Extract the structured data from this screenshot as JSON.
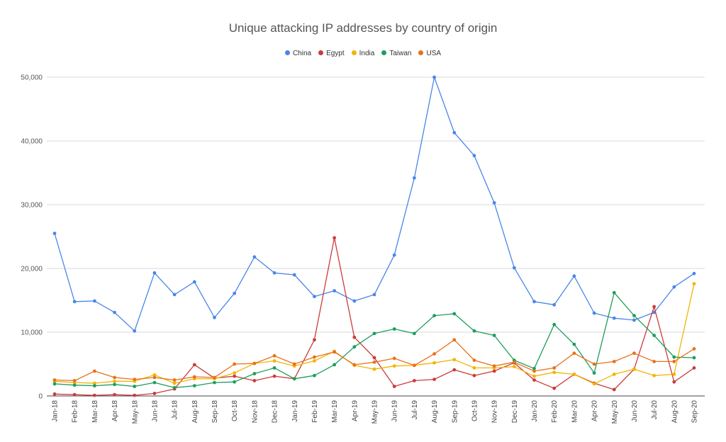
{
  "chart_data": {
    "type": "line",
    "title": "Unique attacking IP addresses by country of origin",
    "xlabel": "",
    "ylabel": "",
    "ylim": [
      0,
      50000
    ],
    "yticks": [
      "0",
      "10,000",
      "20,000",
      "30,000",
      "40,000",
      "50,000"
    ],
    "grid": true,
    "legend_position": "top",
    "categories": [
      "Jan-18",
      "Feb-18",
      "Mar-18",
      "Apr-18",
      "May-18",
      "Jun-18",
      "Jul-18",
      "Aug-18",
      "Sep-18",
      "Oct-18",
      "Nov-18",
      "Dec-18",
      "Jan-19",
      "Feb-19",
      "Mar-19",
      "Apr-19",
      "May-19",
      "Jun-19",
      "Jul-19",
      "Aug-19",
      "Sep-19",
      "Oct-19",
      "Nov-19",
      "Dec-19",
      "Jan-20",
      "Feb-20",
      "Mar-20",
      "Apr-20",
      "May-20",
      "Jun-20",
      "Jul-20",
      "Aug-20",
      "Sep-20"
    ],
    "series": [
      {
        "name": "China",
        "color": "#4a86e8",
        "values": [
          25500,
          14800,
          14900,
          13100,
          10200,
          19300,
          15900,
          17900,
          12300,
          16100,
          21800,
          19300,
          19000,
          15600,
          16500,
          14900,
          15900,
          22100,
          34200,
          50000,
          41300,
          37700,
          30300,
          20100,
          14800,
          14300,
          18800,
          13000,
          12200,
          11900,
          13100,
          17100,
          19200
        ]
      },
      {
        "name": "Egypt",
        "color": "#cc3b3b",
        "values": [
          300,
          200,
          100,
          200,
          100,
          400,
          1100,
          4900,
          2800,
          3100,
          2400,
          3100,
          2700,
          8800,
          24800,
          9200,
          6000,
          1500,
          2400,
          2600,
          4100,
          3200,
          3900,
          5200,
          2500,
          1200,
          3400,
          2000,
          1000,
          4200,
          14000,
          2200,
          4400
        ]
      },
      {
        "name": "India",
        "color": "#f4b400",
        "values": [
          2300,
          2100,
          2000,
          2300,
          2300,
          3300,
          2000,
          2700,
          2700,
          3600,
          5100,
          5500,
          4700,
          5500,
          7000,
          4800,
          4200,
          4700,
          4800,
          5200,
          5700,
          4400,
          4400,
          4600,
          3100,
          3700,
          3400,
          1900,
          3400,
          4200,
          3200,
          3400,
          17600
        ]
      },
      {
        "name": "Taiwan",
        "color": "#1e9e5a",
        "values": [
          1900,
          1700,
          1600,
          1800,
          1500,
          2100,
          1300,
          1600,
          2100,
          2200,
          3500,
          4400,
          2700,
          3200,
          4900,
          7700,
          9800,
          10500,
          9800,
          12600,
          12900,
          10200,
          9500,
          5600,
          4300,
          11200,
          8100,
          3600,
          16200,
          12600,
          9500,
          6100,
          6000
        ]
      },
      {
        "name": "USA",
        "color": "#e8711c",
        "values": [
          2500,
          2400,
          3900,
          2900,
          2600,
          2900,
          2500,
          3000,
          2900,
          5000,
          5100,
          6300,
          5000,
          6100,
          6900,
          4900,
          5300,
          5900,
          4800,
          6600,
          8800,
          5600,
          4700,
          5300,
          3900,
          4400,
          6700,
          5000,
          5400,
          6700,
          5400,
          5400,
          7400
        ]
      }
    ]
  }
}
